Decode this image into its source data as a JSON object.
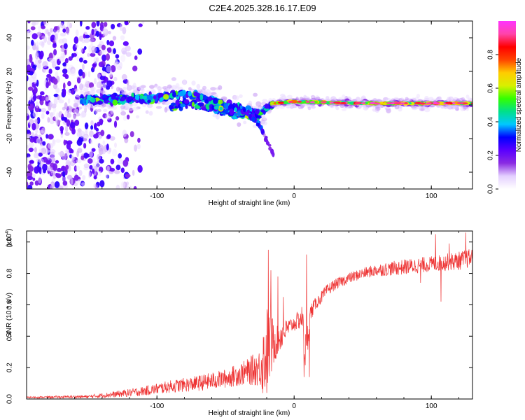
{
  "title": "C2E4.2025.328.16.17.E09",
  "chart_data": [
    {
      "type": "heatmap",
      "name": "spectrogram",
      "xlabel": "Height of straight line (km)",
      "ylabel": "Frequency (Hz)",
      "xlim": [
        -195,
        130
      ],
      "ylim": [
        -50,
        50
      ],
      "xticks": [
        -100,
        0,
        100
      ],
      "yticks": [
        -40,
        -20,
        0,
        20,
        40
      ],
      "colorbar": {
        "label": "Normalized spectral amplitude",
        "range": [
          0,
          1
        ],
        "ticks": [
          0.0,
          0.2,
          0.4,
          0.6,
          0.8
        ],
        "tick_labels": [
          "0.0",
          "0.2",
          "0.4",
          "0.6",
          "0.8"
        ],
        "colors": [
          "#ffffff",
          "#e4d0ff",
          "#8a2be2",
          "#5a00ff",
          "#0000ff",
          "#00c8ff",
          "#00e08a",
          "#33ff00",
          "#d8f000",
          "#ffcc00",
          "#ff4400",
          "#ff0000",
          "#ff44aa",
          "#ff33ff"
        ]
      },
      "description_of_features": {
        "noise_region_x": [
          -195,
          -115
        ],
        "band_center_hz": [
          [
            -155,
            3
          ],
          [
            -100,
            4
          ],
          [
            -80,
            7
          ],
          [
            -60,
            3
          ],
          [
            -40,
            -3
          ],
          [
            -25,
            -5
          ],
          [
            -15,
            1
          ],
          [
            0,
            2
          ],
          [
            50,
            1
          ],
          [
            130,
            1
          ]
        ],
        "trailing_branch": [
          [
            -40,
            0
          ],
          [
            -25,
            -12
          ],
          [
            -15,
            -30
          ]
        ]
      }
    },
    {
      "type": "line",
      "name": "snr",
      "xlabel": "Height of straight line (km)",
      "ylabel": "SNR (10 * v/v)",
      "y_multiplier": "(x10",
      "y_multiplier_exp": "4",
      "y_multiplier_close": ")",
      "xlim": [
        -195,
        130
      ],
      "ylim": [
        0,
        1.07
      ],
      "xticks": [
        -100,
        0,
        100
      ],
      "yticks": [
        0.0,
        0.2,
        0.4,
        0.6,
        0.8,
        1.0
      ],
      "ytick_labels": [
        "0.0",
        "0.2",
        "0.4",
        "0.6",
        "0.8",
        "1.0"
      ],
      "color": "#ee3333",
      "envelope": {
        "x": [
          -195,
          -150,
          -130,
          -110,
          -90,
          -70,
          -50,
          -35,
          -25,
          -22,
          -20,
          -18,
          -15,
          -12,
          -10,
          -8,
          -5,
          -2,
          0,
          3,
          6,
          8,
          10,
          12,
          15,
          20,
          25,
          30,
          40,
          50,
          60,
          80,
          100,
          120,
          130
        ],
        "mean": [
          0.01,
          0.015,
          0.03,
          0.05,
          0.08,
          0.1,
          0.13,
          0.17,
          0.2,
          0.25,
          0.3,
          0.33,
          0.36,
          0.38,
          0.4,
          0.42,
          0.45,
          0.47,
          0.48,
          0.5,
          0.52,
          0.3,
          0.4,
          0.55,
          0.6,
          0.65,
          0.7,
          0.73,
          0.77,
          0.8,
          0.82,
          0.84,
          0.86,
          0.88,
          0.9
        ],
        "noise": [
          0.005,
          0.01,
          0.02,
          0.03,
          0.04,
          0.05,
          0.06,
          0.08,
          0.12,
          0.25,
          0.3,
          0.25,
          0.15,
          0.1,
          0.1,
          0.08,
          0.06,
          0.05,
          0.05,
          0.06,
          0.08,
          0.12,
          0.1,
          0.06,
          0.04,
          0.04,
          0.04,
          0.035,
          0.035,
          0.035,
          0.04,
          0.05,
          0.05,
          0.06,
          0.06
        ]
      },
      "spikes": [
        [
          -19,
          0.95
        ],
        [
          -17,
          0.82
        ],
        [
          -12,
          0.78
        ],
        [
          -8,
          0.65
        ],
        [
          9,
          0.92
        ],
        [
          7,
          0.14
        ],
        [
          11,
          0.14
        ],
        [
          103,
          1.05
        ],
        [
          113,
          0.99
        ],
        [
          125,
          1.06
        ],
        [
          107,
          0.62
        ],
        [
          92,
          0.74
        ]
      ]
    }
  ]
}
